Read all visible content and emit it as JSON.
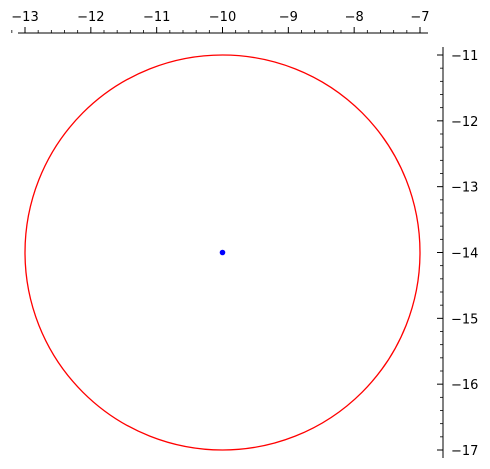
{
  "chart_data": {
    "type": "scatter",
    "title": "",
    "xlabel": "",
    "ylabel": "",
    "xlim": [
      -13,
      -7
    ],
    "ylim": [
      -17,
      -11
    ],
    "x_axis_position": "top",
    "y_axis_position": "right",
    "y_axis_inverted": true,
    "grid": false,
    "x_ticks": [
      -13,
      -12,
      -11,
      -10,
      -9,
      -8,
      -7
    ],
    "x_tick_labels": [
      "−13",
      "−12",
      "−11",
      "−10",
      "−9",
      "−8",
      "−7"
    ],
    "y_ticks": [
      -11,
      -12,
      -13,
      -14,
      -15,
      -16,
      -17
    ],
    "y_tick_labels": [
      "−11",
      "−12",
      "−13",
      "−14",
      "−15",
      "−16",
      "−17"
    ],
    "minor_ticks_per_major": 5,
    "circle": {
      "center": [
        -10,
        -14
      ],
      "radius": 3,
      "color": "#ff0000"
    },
    "points": [
      {
        "x": -10,
        "y": -14,
        "color": "#0000ff"
      }
    ]
  }
}
